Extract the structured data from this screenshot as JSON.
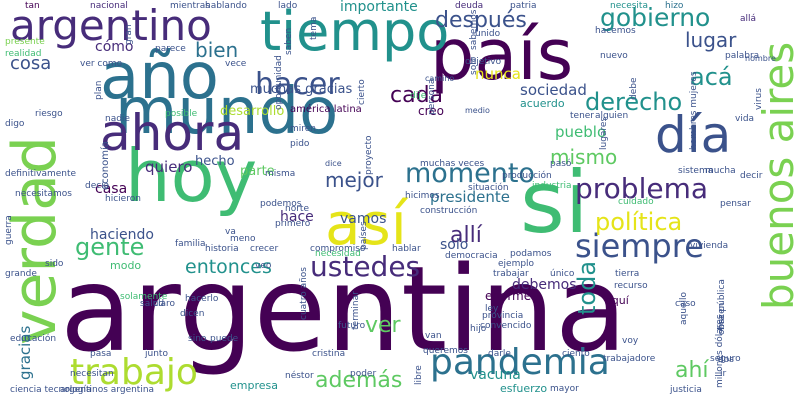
{
  "words": [
    {
      "text": "argentina",
      "color": "#440154",
      "rot": 0
    },
    {
      "text": "hoy",
      "color": "#3fbc73",
      "rot": 0
    },
    {
      "text": "mundo",
      "color": "#2c718e",
      "rot": 0
    },
    {
      "text": "país",
      "color": "#440154",
      "rot": 0
    },
    {
      "text": "tiempo",
      "color": "#21918c",
      "rot": 0
    },
    {
      "text": "año",
      "color": "#2c718e",
      "rot": 0
    },
    {
      "text": "ahora",
      "color": "#472c7a",
      "rot": 0
    },
    {
      "text": "día",
      "color": "#3b528b",
      "rot": 0
    },
    {
      "text": "verdad",
      "color": "#7ad151",
      "rot": -90
    },
    {
      "text": "así",
      "color": "#e5e419",
      "rot": 0
    },
    {
      "text": "si",
      "color": "#3fbc73",
      "rot": 0
    },
    {
      "text": "argentino",
      "color": "#472c7a",
      "rot": 0
    },
    {
      "text": "buenos aires",
      "color": "#7ad151",
      "rot": -90
    },
    {
      "text": "pandemia",
      "color": "#2c718e",
      "rot": 0
    },
    {
      "text": "trabajo",
      "color": "#addc30",
      "rot": 0
    },
    {
      "text": "hacer",
      "color": "#3b528b",
      "rot": 0
    },
    {
      "text": "momento",
      "color": "#2c718e",
      "rot": 0
    },
    {
      "text": "problema",
      "color": "#472c7a",
      "rot": 0
    },
    {
      "text": "siempre",
      "color": "#3b528b",
      "rot": 0
    },
    {
      "text": "ustedes",
      "color": "#472c7a",
      "rot": 0
    },
    {
      "text": "gobierno",
      "color": "#21918c",
      "rot": 0
    },
    {
      "text": "después",
      "color": "#3b528b",
      "rot": 0
    },
    {
      "text": "derecho",
      "color": "#21918c",
      "rot": 0
    },
    {
      "text": "política",
      "color": "#e5e419",
      "rot": 0
    },
    {
      "text": "mejor",
      "color": "#3b528b",
      "rot": 0
    },
    {
      "text": "allí",
      "color": "#472c7a",
      "rot": 0
    },
    {
      "text": "gente",
      "color": "#3fbc73",
      "rot": 0
    },
    {
      "text": "entonces",
      "color": "#21918c",
      "rot": 0
    },
    {
      "text": "además",
      "color": "#5ec962",
      "rot": 0
    },
    {
      "text": "ver",
      "color": "#5ec962",
      "rot": 0
    },
    {
      "text": "cada",
      "color": "#440154",
      "rot": 0
    },
    {
      "text": "acá",
      "color": "#21918c",
      "rot": 0
    },
    {
      "text": "lugar",
      "color": "#3b528b",
      "rot": 0
    },
    {
      "text": "mismo",
      "color": "#5ec962",
      "rot": 0
    },
    {
      "text": "cosa",
      "color": "#3b528b",
      "rot": 0
    },
    {
      "text": "bien",
      "color": "#2c718e",
      "rot": 0
    },
    {
      "text": "toda",
      "color": "#21918c",
      "rot": -90
    },
    {
      "text": "sociedad",
      "color": "#3b528b",
      "rot": 0
    },
    {
      "text": "presidente",
      "color": "#2c718e",
      "rot": 0
    },
    {
      "text": "quiero",
      "color": "#472c7a",
      "rot": 0
    },
    {
      "text": "ahí",
      "color": "#5ec962",
      "rot": 0
    },
    {
      "text": "desarrollo",
      "color": "#addc30",
      "rot": 0
    },
    {
      "text": "pueblo",
      "color": "#3fbc73",
      "rot": 0
    },
    {
      "text": "muchas gracias",
      "color": "#3b528b",
      "rot": 0
    },
    {
      "text": "importante",
      "color": "#21918c",
      "rot": 0
    },
    {
      "text": "nunca",
      "color": "#e5e419",
      "rot": 0
    },
    {
      "text": "cómo",
      "color": "#472c7a",
      "rot": 0
    },
    {
      "text": "solo",
      "color": "#3b528b",
      "rot": 0
    },
    {
      "text": "vamos",
      "color": "#3b528b",
      "rot": 0
    },
    {
      "text": "hace",
      "color": "#472c7a",
      "rot": 0
    },
    {
      "text": "vacuna",
      "color": "#21918c",
      "rot": 0
    },
    {
      "text": "debemos",
      "color": "#472c7a",
      "rot": 0
    },
    {
      "text": "casa",
      "color": "#440154",
      "rot": 0
    },
    {
      "text": "enorme",
      "color": "#440154",
      "rot": 0
    },
    {
      "text": "haciendo",
      "color": "#3b528b",
      "rot": 0
    },
    {
      "text": "hecho",
      "color": "#3b528b",
      "rot": 0
    },
    {
      "text": "gracias",
      "color": "#2c718e",
      "rot": -90
    },
    {
      "text": "creo",
      "color": "#440154",
      "rot": 0
    },
    {
      "text": "parte",
      "color": "#5ec962",
      "rot": 0
    },
    {
      "text": "acuerdo",
      "color": "#21918c",
      "rot": 0
    },
    {
      "text": "empresa",
      "color": "#21918c",
      "rot": 0
    },
    {
      "text": "esfuerzo",
      "color": "#21918c",
      "rot": 0
    },
    {
      "text": "modo",
      "color": "#3fbc73",
      "rot": 0
    },
    {
      "text": "aquí",
      "color": "#440154",
      "rot": 0
    },
    {
      "text": "economía",
      "color": "#3b528b",
      "rot": -90
    },
    {
      "text": "nacional",
      "color": "#472c7a",
      "rot": 0
    },
    {
      "text": "mientras",
      "color": "#3b528b",
      "rot": 0
    },
    {
      "text": "hablando",
      "color": "#3b528b",
      "rot": 0
    },
    {
      "text": "lado",
      "color": "#3b528b",
      "rot": 0
    },
    {
      "text": "deuda",
      "color": "#472c7a",
      "rot": 0
    },
    {
      "text": "patria",
      "color": "#3b528b",
      "rot": 0
    },
    {
      "text": "necesita",
      "color": "#21918c",
      "rot": 0
    },
    {
      "text": "hizo",
      "color": "#2c718e",
      "rot": 0
    },
    {
      "text": "allá",
      "color": "#472c7a",
      "rot": 0
    },
    {
      "text": "tan",
      "color": "#440154",
      "rot": 0
    },
    {
      "text": "vece",
      "color": "#3b528b",
      "rot": 0
    },
    {
      "text": "parece",
      "color": "#3b528b",
      "rot": 0
    },
    {
      "text": "ver como",
      "color": "#3b528b",
      "rot": 0
    },
    {
      "text": "presente",
      "color": "#7ad151",
      "rot": 0
    },
    {
      "text": "realidad",
      "color": "#3fbc73",
      "rot": 0
    },
    {
      "text": "hacemos",
      "color": "#3b528b",
      "rot": 0
    },
    {
      "text": "unido",
      "color": "#3b528b",
      "rot": 0
    },
    {
      "text": "objetivo",
      "color": "#3b528b",
      "rot": 0
    },
    {
      "text": "nuevo",
      "color": "#3b528b",
      "rot": 0
    },
    {
      "text": "palabra",
      "color": "#3b528b",
      "rot": 0
    },
    {
      "text": "nombre",
      "color": "#3b528b",
      "rot": 0
    },
    {
      "text": "camino",
      "color": "#3b528b",
      "rot": 0
    },
    {
      "text": "dije",
      "color": "#3fbc73",
      "rot": 0
    },
    {
      "text": "américa latina",
      "color": "#440154",
      "rot": 0
    },
    {
      "text": "medio",
      "color": "#3b528b",
      "rot": 0
    },
    {
      "text": "digo",
      "color": "#3b528b",
      "rot": 0
    },
    {
      "text": "riesgo",
      "color": "#3b528b",
      "rot": 0
    },
    {
      "text": "nadie",
      "color": "#3b528b",
      "rot": 0
    },
    {
      "text": "posible",
      "color": "#3fbc73",
      "rot": 0
    },
    {
      "text": "tener",
      "color": "#3b528b",
      "rot": 0
    },
    {
      "text": "alguien",
      "color": "#3b528b",
      "rot": 0
    },
    {
      "text": "vida",
      "color": "#3b528b",
      "rot": 0
    },
    {
      "text": "miren",
      "color": "#3b528b",
      "rot": 0
    },
    {
      "text": "pido",
      "color": "#3b528b",
      "rot": 0
    },
    {
      "text": "dice",
      "color": "#3b528b",
      "rot": 0
    },
    {
      "text": "muchas veces",
      "color": "#3b528b",
      "rot": 0
    },
    {
      "text": "pasó",
      "color": "#3b528b",
      "rot": 0
    },
    {
      "text": "sistema",
      "color": "#3b528b",
      "rot": 0
    },
    {
      "text": "mucha",
      "color": "#3b528b",
      "rot": 0
    },
    {
      "text": "decir",
      "color": "#3b528b",
      "rot": 0
    },
    {
      "text": "producción",
      "color": "#3b528b",
      "rot": 0
    },
    {
      "text": "industria",
      "color": "#3fbc73",
      "rot": 0
    },
    {
      "text": "definitivamente",
      "color": "#3b528b",
      "rot": 0
    },
    {
      "text": "decía",
      "color": "#3b528b",
      "rot": 0
    },
    {
      "text": "hicieron",
      "color": "#3b528b",
      "rot": 0
    },
    {
      "text": "misma",
      "color": "#3b528b",
      "rot": 0
    },
    {
      "text": "hicimos",
      "color": "#3b528b",
      "rot": 0
    },
    {
      "text": "situación",
      "color": "#3b528b",
      "rot": 0
    },
    {
      "text": "pensar",
      "color": "#3b528b",
      "rot": 0
    },
    {
      "text": "construcción",
      "color": "#3b528b",
      "rot": 0
    },
    {
      "text": "cuidado",
      "color": "#3fbc73",
      "rot": 0
    },
    {
      "text": "necesitamos",
      "color": "#3b528b",
      "rot": 0
    },
    {
      "text": "podemos",
      "color": "#3b528b",
      "rot": 0
    },
    {
      "text": "norte",
      "color": "#3b528b",
      "rot": 0
    },
    {
      "text": "primero",
      "color": "#3b528b",
      "rot": 0
    },
    {
      "text": "va",
      "color": "#3b528b",
      "rot": 0
    },
    {
      "text": "meno",
      "color": "#3b528b",
      "rot": 0
    },
    {
      "text": "familia",
      "color": "#3b528b",
      "rot": 0
    },
    {
      "text": "historia",
      "color": "#3b528b",
      "rot": 0
    },
    {
      "text": "crecer",
      "color": "#3b528b",
      "rot": 0
    },
    {
      "text": "compromiso",
      "color": "#3b528b",
      "rot": 0
    },
    {
      "text": "hablar",
      "color": "#3b528b",
      "rot": 0
    },
    {
      "text": "podamos",
      "color": "#3b528b",
      "rot": 0
    },
    {
      "text": "democracia",
      "color": "#3b528b",
      "rot": 0
    },
    {
      "text": "vivienda",
      "color": "#3b528b",
      "rot": 0
    },
    {
      "text": "sido",
      "color": "#3b528b",
      "rot": 0
    },
    {
      "text": "solamente",
      "color": "#3fbc73",
      "rot": 0
    },
    {
      "text": "salud",
      "color": "#3b528b",
      "rot": 0
    },
    {
      "text": "necesidad",
      "color": "#3fbc73",
      "rot": 0
    },
    {
      "text": "veo",
      "color": "#3b528b",
      "rot": 0
    },
    {
      "text": "ejemplo",
      "color": "#3b528b",
      "rot": 0
    },
    {
      "text": "trabajar",
      "color": "#3b528b",
      "rot": 0
    },
    {
      "text": "único",
      "color": "#3b528b",
      "rot": 0
    },
    {
      "text": "tierra",
      "color": "#3b528b",
      "rot": 0
    },
    {
      "text": "grande",
      "color": "#3b528b",
      "rot": 0
    },
    {
      "text": "claro",
      "color": "#3b528b",
      "rot": 0
    },
    {
      "text": "hacerlo",
      "color": "#3b528b",
      "rot": 0
    },
    {
      "text": "dicen",
      "color": "#3b528b",
      "rot": 0
    },
    {
      "text": "futuro",
      "color": "#3b528b",
      "rot": 0
    },
    {
      "text": "ley",
      "color": "#3b528b",
      "rot": 0
    },
    {
      "text": "convencido",
      "color": "#3b528b",
      "rot": 0
    },
    {
      "text": "provincia",
      "color": "#3b528b",
      "rot": 0
    },
    {
      "text": "caso",
      "color": "#3b528b",
      "rot": 0
    },
    {
      "text": "recurso",
      "color": "#3b528b",
      "rot": 0
    },
    {
      "text": "educación",
      "color": "#3b528b",
      "rot": 0
    },
    {
      "text": "sino",
      "color": "#3b528b",
      "rot": 0
    },
    {
      "text": "puede",
      "color": "#3b528b",
      "rot": 0
    },
    {
      "text": "hijo",
      "color": "#3b528b",
      "rot": 0
    },
    {
      "text": "van",
      "color": "#3b528b",
      "rot": 0
    },
    {
      "text": "pasa",
      "color": "#3b528b",
      "rot": 0
    },
    {
      "text": "junto",
      "color": "#3b528b",
      "rot": 0
    },
    {
      "text": "queremos",
      "color": "#3b528b",
      "rot": 0
    },
    {
      "text": "necesitan",
      "color": "#3b528b",
      "rot": 0
    },
    {
      "text": "cristina",
      "color": "#3b528b",
      "rot": 0
    },
    {
      "text": "darle",
      "color": "#3b528b",
      "rot": 0
    },
    {
      "text": "ciento",
      "color": "#3b528b",
      "rot": 0
    },
    {
      "text": "voy",
      "color": "#3b528b",
      "rot": 0
    },
    {
      "text": "trabajadore",
      "color": "#3b528b",
      "rot": 0
    },
    {
      "text": "dos",
      "color": "#3b528b",
      "rot": 0
    },
    {
      "text": "seguro",
      "color": "#3b528b",
      "rot": 0
    },
    {
      "text": "néstor",
      "color": "#3b528b",
      "rot": 0
    },
    {
      "text": "poder",
      "color": "#3b528b",
      "rot": 0
    },
    {
      "text": "ciencia tecnología",
      "color": "#3b528b",
      "rot": 0
    },
    {
      "text": "argentinos argentina",
      "color": "#3b528b",
      "rot": 0
    },
    {
      "text": "mayor",
      "color": "#3b528b",
      "rot": 0
    },
    {
      "text": "justicia",
      "color": "#3b528b",
      "rot": 0
    },
    {
      "text": "ir",
      "color": "#3b528b",
      "rot": 0
    },
    {
      "text": "millones dólares",
      "color": "#3b528b",
      "rot": -90
    },
    {
      "text": "guerra",
      "color": "#3b528b",
      "rot": -90
    },
    {
      "text": "tema",
      "color": "#3b528b",
      "rot": -90
    },
    {
      "text": "saben",
      "color": "#3b528b",
      "rot": -90
    },
    {
      "text": "sabemos",
      "color": "#3b528b",
      "rot": -90
    },
    {
      "text": "plan",
      "color": "#3b528b",
      "rot": -90
    },
    {
      "text": "cierto",
      "color": "#3b528b",
      "rot": -90
    },
    {
      "text": "oportunidad",
      "color": "#3b528b",
      "rot": -90
    },
    {
      "text": "persona",
      "color": "#3b528b",
      "rot": -90
    },
    {
      "text": "debe",
      "color": "#3b528b",
      "rot": -90
    },
    {
      "text": "virus",
      "color": "#3b528b",
      "rot": -90
    },
    {
      "text": "lugares",
      "color": "#3b528b",
      "rot": -90
    },
    {
      "text": "hombres mujeres",
      "color": "#3b528b",
      "rot": -90
    },
    {
      "text": "proyecto",
      "color": "#3b528b",
      "rot": -90
    },
    {
      "text": "países",
      "color": "#3b528b",
      "rot": -90
    },
    {
      "text": "cuatro años",
      "color": "#3b528b",
      "rot": -90
    },
    {
      "text": "terminar",
      "color": "#3b528b",
      "rot": -90
    },
    {
      "text": "aquello",
      "color": "#3b528b",
      "rot": -90
    },
    {
      "text": "obra pública",
      "color": "#3b528b",
      "rot": -90
    },
    {
      "text": "hacen",
      "color": "#3b528b",
      "rot": -90
    },
    {
      "text": "libre",
      "color": "#3b528b",
      "rot": -90
    },
    {
      "text": "gran",
      "color": "#3b528b",
      "rot": -90
    },
    {
      "text": "solo",
      "color": "#3b528b",
      "rot": -90
    }
  ]
}
